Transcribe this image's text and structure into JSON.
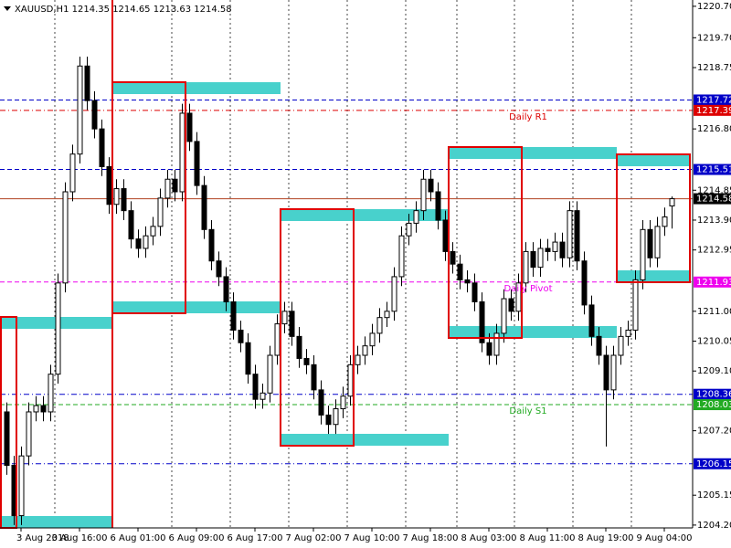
{
  "chart_data": {
    "type": "candlestick",
    "title": "XAUUSD,H1",
    "categories": [
      null,
      null,
      "3 Aug 2018",
      null,
      null,
      null,
      null,
      null,
      null,
      null,
      "3 Aug 16:00",
      null,
      null,
      null,
      null,
      null,
      null,
      null,
      "6 Aug 01:00",
      null,
      null,
      null,
      null,
      null,
      null,
      null,
      "6 Aug 09:00",
      null,
      null,
      null,
      null,
      null,
      null,
      null,
      "6 Aug 17:00",
      null,
      null,
      null,
      null,
      null,
      null,
      null,
      "7 Aug 02:00",
      null,
      null,
      null,
      null,
      null,
      null,
      null,
      "7 Aug 10:00",
      null,
      null,
      null,
      null,
      null,
      null,
      null,
      "7 Aug 18:00",
      null,
      null,
      null,
      null,
      null,
      null,
      null,
      "8 Aug 03:00",
      null,
      null,
      null,
      null,
      null,
      null,
      null,
      "8 Aug 11:00",
      null,
      null,
      null,
      null,
      null,
      null,
      null,
      "8 Aug 19:00",
      null,
      null,
      null,
      null,
      null,
      null,
      null,
      "9 Aug 04:00",
      null
    ],
    "open": [
      1207.8,
      1206.1,
      1204.5,
      1206.4,
      1207.8,
      1208.0,
      1207.8,
      1209.0,
      1211.9,
      1214.8,
      1216.0,
      1218.8,
      1217.7,
      1216.8,
      1215.6,
      1214.4,
      1214.9,
      1214.2,
      1213.3,
      1213.0,
      1213.4,
      1213.7,
      1214.6,
      1215.2,
      1214.8,
      1217.3,
      1216.4,
      1215.0,
      1213.6,
      1212.6,
      1212.1,
      1211.3,
      1210.4,
      1210.0,
      1209.0,
      1208.2,
      1208.4,
      1209.6,
      1210.6,
      1211.0,
      1210.2,
      1209.5,
      1209.3,
      1208.5,
      1207.7,
      1207.4,
      1207.9,
      1208.3,
      1209.3,
      1209.6,
      1209.9,
      1210.3,
      1210.8,
      1211.0,
      1212.1,
      1213.4,
      1213.8,
      1214.2,
      1215.2,
      1214.8,
      1213.9,
      1212.9,
      1212.5,
      1212.0,
      1211.9,
      1211.3,
      1210.0,
      1209.6,
      1210.3,
      1211.4,
      1211.0,
      1211.9,
      1212.9,
      1212.4,
      1213.0,
      1212.9,
      1213.2,
      1212.7,
      1214.2,
      1212.6,
      1211.2,
      1210.2,
      1209.6,
      1208.5,
      1209.6,
      1210.2,
      1210.4,
      1212.0,
      1213.6,
      1212.7,
      1213.7,
      1214.35
    ],
    "high": [
      1208.1,
      1206.4,
      1206.7,
      1208.1,
      1208.3,
      1208.3,
      1209.3,
      1212.2,
      1215.1,
      1216.3,
      1219.1,
      1219.1,
      1218.0,
      1217.1,
      1215.9,
      1215.2,
      1215.2,
      1214.5,
      1213.6,
      1213.7,
      1214.0,
      1214.9,
      1215.5,
      1215.5,
      1217.6,
      1217.6,
      1216.7,
      1215.3,
      1213.9,
      1212.9,
      1212.4,
      1211.6,
      1210.7,
      1210.3,
      1209.3,
      1208.7,
      1209.9,
      1210.9,
      1211.3,
      1211.3,
      1210.5,
      1209.8,
      1209.6,
      1208.8,
      1208.0,
      1208.2,
      1208.6,
      1209.6,
      1209.9,
      1210.2,
      1210.6,
      1211.1,
      1211.3,
      1212.4,
      1213.7,
      1214.1,
      1214.5,
      1215.5,
      1215.5,
      1215.1,
      1214.2,
      1213.2,
      1212.8,
      1212.3,
      1212.2,
      1211.6,
      1210.3,
      1210.6,
      1211.7,
      1211.7,
      1212.2,
      1213.2,
      1213.2,
      1213.3,
      1213.3,
      1213.5,
      1213.5,
      1214.5,
      1214.5,
      1212.9,
      1211.5,
      1210.5,
      1209.9,
      1209.9,
      1210.5,
      1210.7,
      1212.3,
      1213.9,
      1213.9,
      1214.0,
      1214.3,
      1214.65
    ],
    "low": [
      1205.8,
      1204.2,
      1204.2,
      1206.1,
      1207.5,
      1207.5,
      1207.5,
      1208.7,
      1211.6,
      1214.5,
      1215.7,
      1217.4,
      1216.5,
      1215.3,
      1214.1,
      1214.1,
      1213.9,
      1213.0,
      1212.7,
      1212.7,
      1213.1,
      1213.4,
      1214.3,
      1214.5,
      1214.5,
      1216.1,
      1214.7,
      1213.3,
      1212.3,
      1211.8,
      1211.0,
      1210.1,
      1209.7,
      1208.7,
      1207.9,
      1207.9,
      1208.1,
      1209.3,
      1210.3,
      1209.9,
      1209.2,
      1209.0,
      1208.2,
      1207.4,
      1207.1,
      1207.1,
      1207.6,
      1208.0,
      1209.0,
      1209.3,
      1209.6,
      1210.0,
      1210.5,
      1210.7,
      1211.8,
      1213.1,
      1213.5,
      1213.9,
      1214.5,
      1213.6,
      1212.6,
      1212.2,
      1211.7,
      1211.6,
      1211.0,
      1209.7,
      1209.3,
      1209.3,
      1210.0,
      1210.7,
      1210.7,
      1211.6,
      1212.1,
      1212.1,
      1212.6,
      1212.6,
      1212.4,
      1212.4,
      1212.3,
      1210.9,
      1209.9,
      1209.3,
      1206.7,
      1208.2,
      1209.3,
      1209.9,
      1210.1,
      1211.7,
      1212.4,
      1212.4,
      1213.4,
      1213.63
    ],
    "close": [
      1206.1,
      1204.5,
      1206.4,
      1207.8,
      1208.0,
      1207.8,
      1209.0,
      1211.9,
      1214.8,
      1216.0,
      1218.8,
      1217.7,
      1216.8,
      1215.6,
      1214.4,
      1214.9,
      1214.2,
      1213.3,
      1213.0,
      1213.4,
      1213.7,
      1214.6,
      1215.2,
      1214.8,
      1217.3,
      1216.4,
      1215.0,
      1213.6,
      1212.6,
      1212.1,
      1211.3,
      1210.4,
      1210.0,
      1209.0,
      1208.2,
      1208.4,
      1209.6,
      1210.6,
      1211.0,
      1210.2,
      1209.5,
      1209.3,
      1208.5,
      1207.7,
      1207.4,
      1207.9,
      1208.3,
      1209.3,
      1209.6,
      1209.9,
      1210.3,
      1210.8,
      1211.0,
      1212.1,
      1213.4,
      1213.8,
      1214.2,
      1215.2,
      1214.8,
      1213.9,
      1212.9,
      1212.5,
      1212.0,
      1211.9,
      1211.3,
      1210.0,
      1209.6,
      1210.3,
      1211.4,
      1211.0,
      1211.9,
      1212.9,
      1212.4,
      1213.0,
      1212.9,
      1213.2,
      1212.7,
      1214.2,
      1212.6,
      1211.2,
      1210.2,
      1209.6,
      1208.5,
      1209.6,
      1210.2,
      1210.4,
      1212.0,
      1213.6,
      1212.7,
      1213.7,
      1214.0,
      1214.58
    ],
    "ylim": [
      1204.11,
      1220.9
    ],
    "yticks": [
      {
        "value": 1220.7,
        "label": "1220.70"
      },
      {
        "value": 1219.7,
        "label": "1219.70"
      },
      {
        "value": 1218.75,
        "label": "1218.75"
      },
      {
        "value": 1216.8,
        "label": "1216.80"
      },
      {
        "value": 1214.85,
        "label": "1214.85"
      },
      {
        "value": 1213.9,
        "label": "1213.90"
      },
      {
        "value": 1212.95,
        "label": "1212.95"
      },
      {
        "value": 1211,
        "label": "1211.00"
      },
      {
        "value": 1210.05,
        "label": "1210.05"
      },
      {
        "value": 1209.1,
        "label": "1209.10"
      },
      {
        "value": 1207.2,
        "label": "1207.20"
      },
      {
        "value": 1205.15,
        "label": "1205.15"
      },
      {
        "value": 1204.2,
        "label": "1204.20"
      }
    ],
    "levels": [
      {
        "value": 1217.72,
        "color": "#0000c8"
      },
      {
        "value": 1217.39,
        "color": "#dd0000"
      },
      {
        "value": 1215.51,
        "color": "#0000c8"
      },
      {
        "value": 1214.58,
        "color": "#000000"
      },
      {
        "value": 1211.93,
        "color": "#ee00ee"
      },
      {
        "value": 1208.36,
        "color": "#0000c8"
      },
      {
        "value": 1208.03,
        "color": "#22aa22"
      },
      {
        "value": 1206.15,
        "color": "#0000c8"
      }
    ],
    "annotations": [
      "Daily R1",
      "Daily Pivot",
      "Daily S1"
    ]
  }
}
